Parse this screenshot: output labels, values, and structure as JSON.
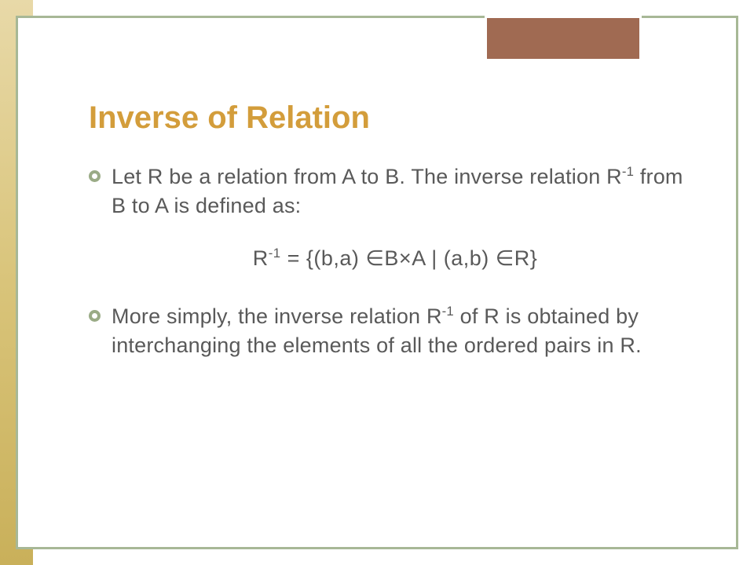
{
  "colors": {
    "title": "#d39d3b",
    "bullet_ring": "#9aab86",
    "text": "#595959"
  },
  "slide": {
    "title": "Inverse of Relation",
    "bullet1_pre": "Let R be a relation from A to B. The inverse relation R",
    "bullet1_sup": "-1",
    "bullet1_post": " from B to A is defined as:",
    "formula_1": "R",
    "formula_sup1": "-1",
    "formula_2": " = {(b,a) ∈B×A | (a,b) ∈R}",
    "bullet2_pre": "More simply, the inverse relation R",
    "bullet2_sup": "-1",
    "bullet2_post": " of R is obtained by interchanging the elements of all the ordered pairs in R."
  }
}
